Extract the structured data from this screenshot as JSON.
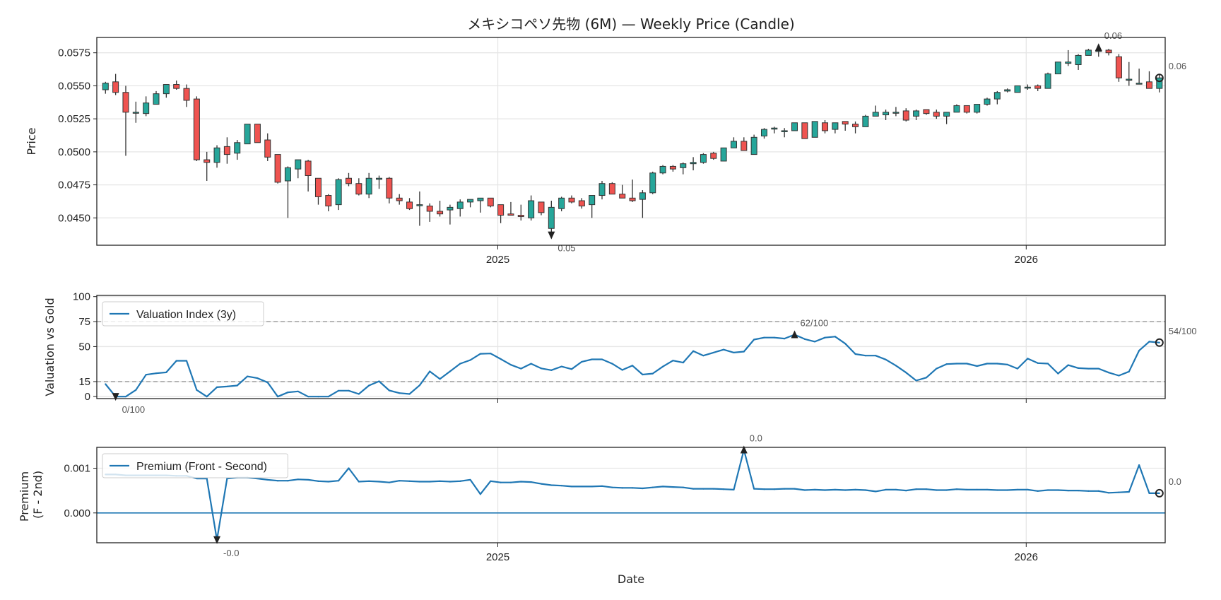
{
  "title": "メキシコペソ先物 (6M) — Weekly Price (Candle)",
  "x_axis": {
    "label": "Date",
    "xlim": [
      "2024-03-30",
      "2026-04-07"
    ],
    "ticks": [
      {
        "date": "2025-01-01",
        "label": "2025"
      },
      {
        "date": "2026-01-01",
        "label": "2026"
      }
    ]
  },
  "chart_data": {
    "type": "multi-panel",
    "x": [
      "2024-04-05",
      "2024-04-12",
      "2024-04-19",
      "2024-04-26",
      "2024-05-03",
      "2024-05-10",
      "2024-05-17",
      "2024-05-24",
      "2024-05-31",
      "2024-06-07",
      "2024-06-14",
      "2024-06-21",
      "2024-06-28",
      "2024-07-05",
      "2024-07-12",
      "2024-07-19",
      "2024-07-26",
      "2024-08-02",
      "2024-08-09",
      "2024-08-16",
      "2024-08-23",
      "2024-08-30",
      "2024-09-06",
      "2024-09-13",
      "2024-09-20",
      "2024-09-27",
      "2024-10-04",
      "2024-10-11",
      "2024-10-18",
      "2024-10-25",
      "2024-11-01",
      "2024-11-08",
      "2024-11-15",
      "2024-11-22",
      "2024-11-29",
      "2024-12-06",
      "2024-12-13",
      "2024-12-20",
      "2024-12-27",
      "2025-01-03",
      "2025-01-10",
      "2025-01-17",
      "2025-01-24",
      "2025-01-31",
      "2025-02-07",
      "2025-02-14",
      "2025-02-21",
      "2025-02-28",
      "2025-03-07",
      "2025-03-14",
      "2025-03-21",
      "2025-03-28",
      "2025-04-04",
      "2025-04-11",
      "2025-04-18",
      "2025-04-25",
      "2025-05-02",
      "2025-05-09",
      "2025-05-16",
      "2025-05-23",
      "2025-05-30",
      "2025-06-06",
      "2025-06-13",
      "2025-06-20",
      "2025-06-27",
      "2025-07-04",
      "2025-07-11",
      "2025-07-18",
      "2025-07-25",
      "2025-08-01",
      "2025-08-08",
      "2025-08-15",
      "2025-08-22",
      "2025-08-29",
      "2025-09-05",
      "2025-09-12",
      "2025-09-19",
      "2025-09-26",
      "2025-10-03",
      "2025-10-10",
      "2025-10-17",
      "2025-10-24",
      "2025-10-31",
      "2025-11-07",
      "2025-11-14",
      "2025-11-21",
      "2025-11-28",
      "2025-12-05",
      "2025-12-12",
      "2025-12-19",
      "2025-12-26",
      "2026-01-02",
      "2026-01-09",
      "2026-01-16",
      "2026-01-23",
      "2026-01-30",
      "2026-02-06",
      "2026-02-13",
      "2026-02-20",
      "2026-02-27",
      "2026-03-06",
      "2026-03-13",
      "2026-03-20",
      "2026-03-27",
      "2026-04-03"
    ],
    "panels": [
      {
        "type": "candlestick",
        "ylabel": "Price",
        "ylim": [
          0.04293,
          0.05866
        ],
        "grid": true,
        "yticks": [
          {
            "value": 0.045,
            "label": "0.0450"
          },
          {
            "value": 0.0475,
            "label": "0.0475"
          },
          {
            "value": 0.05,
            "label": "0.0500"
          },
          {
            "value": 0.0525,
            "label": "0.0525"
          },
          {
            "value": 0.055,
            "label": "0.0550"
          },
          {
            "value": 0.0575,
            "label": "0.0575"
          }
        ],
        "colors": {
          "up": "#26a69a",
          "down": "#ef5350",
          "edge": "#333333"
        },
        "ohlc_fields": [
          "open",
          "high",
          "low",
          "close"
        ],
        "candles": [
          [
            0.0547,
            0.0553,
            0.0544,
            0.0552
          ],
          [
            0.0553,
            0.0559,
            0.0543,
            0.0545
          ],
          [
            0.0545,
            0.055,
            0.0497,
            0.053
          ],
          [
            0.053,
            0.0538,
            0.0522,
            0.053
          ],
          [
            0.0529,
            0.0542,
            0.0527,
            0.0537
          ],
          [
            0.0536,
            0.0546,
            0.0536,
            0.0544
          ],
          [
            0.0544,
            0.0551,
            0.0541,
            0.0551
          ],
          [
            0.0551,
            0.0554,
            0.0547,
            0.0548
          ],
          [
            0.0548,
            0.0551,
            0.0534,
            0.0539
          ],
          [
            0.054,
            0.0542,
            0.0493,
            0.0494
          ],
          [
            0.0494,
            0.05,
            0.0478,
            0.0492
          ],
          [
            0.0492,
            0.0505,
            0.0488,
            0.0503
          ],
          [
            0.0504,
            0.0511,
            0.0491,
            0.0498
          ],
          [
            0.0499,
            0.0509,
            0.0494,
            0.0507
          ],
          [
            0.0506,
            0.0521,
            0.0506,
            0.0521
          ],
          [
            0.0521,
            0.0521,
            0.0507,
            0.0507
          ],
          [
            0.0509,
            0.0514,
            0.0493,
            0.0496
          ],
          [
            0.0498,
            0.0498,
            0.0476,
            0.0477
          ],
          [
            0.0478,
            0.0489,
            0.045,
            0.0488
          ],
          [
            0.0487,
            0.0494,
            0.048,
            0.0494
          ],
          [
            0.0493,
            0.0494,
            0.047,
            0.0482
          ],
          [
            0.048,
            0.048,
            0.046,
            0.0466
          ],
          [
            0.0467,
            0.0468,
            0.0455,
            0.0459
          ],
          [
            0.046,
            0.048,
            0.0456,
            0.0479
          ],
          [
            0.048,
            0.0484,
            0.0474,
            0.0476
          ],
          [
            0.0476,
            0.048,
            0.0467,
            0.0468
          ],
          [
            0.0468,
            0.0484,
            0.0465,
            0.048
          ],
          [
            0.048,
            0.0482,
            0.0472,
            0.048
          ],
          [
            0.048,
            0.0481,
            0.0461,
            0.0465
          ],
          [
            0.0465,
            0.0468,
            0.046,
            0.0463
          ],
          [
            0.0462,
            0.0465,
            0.0456,
            0.0457
          ],
          [
            0.046,
            0.047,
            0.0444,
            0.046
          ],
          [
            0.0459,
            0.0461,
            0.0447,
            0.0455
          ],
          [
            0.0455,
            0.0463,
            0.0451,
            0.0453
          ],
          [
            0.0456,
            0.046,
            0.0445,
            0.0458
          ],
          [
            0.0457,
            0.0464,
            0.0451,
            0.0462
          ],
          [
            0.0462,
            0.0464,
            0.0458,
            0.0464
          ],
          [
            0.0463,
            0.0465,
            0.0454,
            0.0465
          ],
          [
            0.0465,
            0.0465,
            0.0458,
            0.0459
          ],
          [
            0.046,
            0.046,
            0.0446,
            0.0452
          ],
          [
            0.0453,
            0.0462,
            0.0452,
            0.0452
          ],
          [
            0.0452,
            0.046,
            0.0448,
            0.0451
          ],
          [
            0.045,
            0.0467,
            0.0448,
            0.0463
          ],
          [
            0.0462,
            0.0462,
            0.0452,
            0.0454
          ],
          [
            0.0442,
            0.0463,
            0.0437,
            0.0458
          ],
          [
            0.0457,
            0.0466,
            0.0455,
            0.0465
          ],
          [
            0.0465,
            0.0467,
            0.0461,
            0.0462
          ],
          [
            0.0463,
            0.0465,
            0.0457,
            0.0459
          ],
          [
            0.046,
            0.0467,
            0.045,
            0.0467
          ],
          [
            0.0467,
            0.0478,
            0.0464,
            0.0476
          ],
          [
            0.0476,
            0.0477,
            0.0468,
            0.0468
          ],
          [
            0.0468,
            0.0475,
            0.0465,
            0.0465
          ],
          [
            0.0465,
            0.0479,
            0.0462,
            0.0463
          ],
          [
            0.0464,
            0.0471,
            0.045,
            0.0469
          ],
          [
            0.0469,
            0.0485,
            0.0468,
            0.0484
          ],
          [
            0.0484,
            0.049,
            0.0483,
            0.0489
          ],
          [
            0.0489,
            0.049,
            0.0485,
            0.0487
          ],
          [
            0.0488,
            0.0492,
            0.0483,
            0.0491
          ],
          [
            0.0491,
            0.0496,
            0.0486,
            0.0492
          ],
          [
            0.0492,
            0.0499,
            0.0491,
            0.0498
          ],
          [
            0.0499,
            0.05,
            0.0494,
            0.0495
          ],
          [
            0.0493,
            0.0503,
            0.0493,
            0.0503
          ],
          [
            0.0503,
            0.0511,
            0.0503,
            0.0508
          ],
          [
            0.0508,
            0.0511,
            0.0501,
            0.0501
          ],
          [
            0.0498,
            0.0513,
            0.0498,
            0.0511
          ],
          [
            0.0512,
            0.0518,
            0.051,
            0.0517
          ],
          [
            0.0518,
            0.0519,
            0.0514,
            0.0518
          ],
          [
            0.0516,
            0.0518,
            0.0511,
            0.0516
          ],
          [
            0.0516,
            0.0522,
            0.0516,
            0.0522
          ],
          [
            0.0522,
            0.0522,
            0.051,
            0.051
          ],
          [
            0.0511,
            0.0523,
            0.0511,
            0.0523
          ],
          [
            0.0522,
            0.0524,
            0.0514,
            0.0516
          ],
          [
            0.0517,
            0.0522,
            0.0514,
            0.0522
          ],
          [
            0.0523,
            0.0523,
            0.0516,
            0.0521
          ],
          [
            0.0521,
            0.0523,
            0.0514,
            0.0519
          ],
          [
            0.0519,
            0.0528,
            0.0519,
            0.0527
          ],
          [
            0.0527,
            0.0535,
            0.0527,
            0.053
          ],
          [
            0.0528,
            0.0532,
            0.0524,
            0.053
          ],
          [
            0.053,
            0.0534,
            0.0527,
            0.053
          ],
          [
            0.0531,
            0.0533,
            0.0523,
            0.0524
          ],
          [
            0.0527,
            0.0532,
            0.0524,
            0.0531
          ],
          [
            0.0532,
            0.0532,
            0.0528,
            0.0529
          ],
          [
            0.053,
            0.0532,
            0.0525,
            0.0527
          ],
          [
            0.0527,
            0.053,
            0.0521,
            0.053
          ],
          [
            0.053,
            0.0536,
            0.053,
            0.0535
          ],
          [
            0.0535,
            0.0535,
            0.0529,
            0.053
          ],
          [
            0.053,
            0.0536,
            0.0529,
            0.0536
          ],
          [
            0.0536,
            0.0541,
            0.0535,
            0.054
          ],
          [
            0.054,
            0.0546,
            0.0536,
            0.0545
          ],
          [
            0.0546,
            0.0548,
            0.0545,
            0.0547
          ],
          [
            0.0545,
            0.055,
            0.0545,
            0.055
          ],
          [
            0.0549,
            0.0551,
            0.0547,
            0.0549
          ],
          [
            0.055,
            0.0551,
            0.0546,
            0.0548
          ],
          [
            0.0548,
            0.056,
            0.0548,
            0.0559
          ],
          [
            0.0559,
            0.0568,
            0.0559,
            0.0568
          ],
          [
            0.0567,
            0.0577,
            0.0565,
            0.0568
          ],
          [
            0.0566,
            0.0574,
            0.0562,
            0.0573
          ],
          [
            0.0573,
            0.0578,
            0.0573,
            0.0577
          ],
          [
            0.0576,
            0.0579,
            0.0572,
            0.0577
          ],
          [
            0.0577,
            0.0578,
            0.0573,
            0.0575
          ],
          [
            0.0572,
            0.0574,
            0.0553,
            0.0556
          ],
          [
            0.0555,
            0.0568,
            0.055,
            0.0555
          ],
          [
            0.0552,
            0.0563,
            0.0551,
            0.0552
          ],
          [
            0.0553,
            0.0561,
            0.0548,
            0.0548
          ],
          [
            0.0548,
            0.0559,
            0.0545,
            0.0556
          ]
        ],
        "annotations": {
          "min_label": "0.05",
          "max_label": "0.06",
          "last_label": "0.06"
        }
      },
      {
        "type": "line",
        "ylabel": "Valuation vs Gold",
        "ylim": [
          -2,
          101.2
        ],
        "grid": true,
        "yticks": [
          {
            "value": 0,
            "label": "0"
          },
          {
            "value": 15,
            "label": "15"
          },
          {
            "value": 50,
            "label": "50"
          },
          {
            "value": 75,
            "label": "75"
          },
          {
            "value": 100,
            "label": "100"
          }
        ],
        "reference_lines": [
          {
            "value": 15,
            "style": "dashed",
            "color": "#999999"
          },
          {
            "value": 75,
            "style": "dashed",
            "color": "#999999"
          }
        ],
        "legend": {
          "label": "Valuation Index (3y)",
          "position": "upper-left"
        },
        "color": "#1f77b4",
        "values": [
          12.5,
          0,
          0,
          6.6,
          21.9,
          23.3,
          24.2,
          35.8,
          35.8,
          6.6,
          0,
          9.4,
          10.1,
          11.1,
          20.2,
          18.4,
          14.1,
          0,
          4.2,
          5.2,
          0,
          0,
          0,
          5.9,
          5.9,
          2.6,
          11.1,
          15.3,
          6.1,
          3.5,
          2.6,
          11.3,
          25.2,
          17.6,
          25.2,
          32.9,
          36.5,
          42.8,
          43.1,
          37.6,
          31.8,
          28,
          32.9,
          28.2,
          26.4,
          30.1,
          27.5,
          34.8,
          37.2,
          37.2,
          32.9,
          26.6,
          31,
          22,
          23,
          30,
          36,
          34,
          45.5,
          41,
          44,
          47,
          44,
          45,
          57,
          59,
          59,
          58,
          62,
          57.5,
          55,
          59,
          60,
          53,
          42.5,
          41,
          41,
          37,
          31,
          24,
          16,
          19,
          28,
          32.5,
          33,
          33,
          30.5,
          33,
          33,
          32,
          28,
          38,
          33.5,
          33,
          23,
          31.5,
          28.5,
          28,
          28,
          24,
          21,
          25,
          46,
          55,
          54
        ],
        "annotations": {
          "min_label": "0/100",
          "max_label": "62/100",
          "last_label": "54/100"
        }
      },
      {
        "type": "line",
        "ylabel": [
          "Premium",
          "(F - 2nd)"
        ],
        "ylim": [
          -0.000667,
          0.001466
        ],
        "grid": true,
        "yticks": [
          {
            "value": 0,
            "label": "0.000"
          },
          {
            "value": 0.001,
            "label": "0.001"
          }
        ],
        "reference_lines": [
          {
            "value": 0,
            "style": "solid",
            "color": "#1f77b4"
          }
        ],
        "legend": {
          "label": "Premium (Front - Second)",
          "position": "upper-left"
        },
        "color": "#1f77b4",
        "values": [
          0.00086,
          0.00086,
          0.00084,
          0.00084,
          0.00084,
          0.00084,
          0.00084,
          0.00083,
          0.00083,
          0.00077,
          0.00077,
          -0.0006,
          0.00077,
          0.00079,
          0.00079,
          0.00077,
          0.00074,
          0.00072,
          0.00072,
          0.00075,
          0.00074,
          0.00071,
          0.0007,
          0.00072,
          0.001,
          0.0007,
          0.00071,
          0.0007,
          0.00068,
          0.00072,
          0.00071,
          0.0007,
          0.0007,
          0.00071,
          0.0007,
          0.00071,
          0.00074,
          0.00042,
          0.00071,
          0.00068,
          0.00068,
          0.0007,
          0.00069,
          0.00065,
          0.00062,
          0.00061,
          0.00059,
          0.00059,
          0.00059,
          0.0006,
          0.00057,
          0.00056,
          0.00056,
          0.00055,
          0.00057,
          0.00059,
          0.00058,
          0.00057,
          0.00054,
          0.00054,
          0.00054,
          0.00053,
          0.00052,
          0.00141,
          0.00054,
          0.00053,
          0.00053,
          0.00054,
          0.00054,
          0.00051,
          0.00052,
          0.00051,
          0.00052,
          0.00051,
          0.00052,
          0.00051,
          0.00048,
          0.00052,
          0.00052,
          0.0005,
          0.00053,
          0.00053,
          0.00051,
          0.00051,
          0.00053,
          0.00052,
          0.00052,
          0.00052,
          0.00051,
          0.00051,
          0.00052,
          0.00052,
          0.00049,
          0.00051,
          0.00051,
          0.0005,
          0.0005,
          0.00049,
          0.00049,
          0.00045,
          0.00046,
          0.00047,
          0.00107,
          0.00044,
          0.00044
        ],
        "annotations": {
          "min_label": "-0.0",
          "max_label": "0.0",
          "last_label": "0.0"
        }
      }
    ]
  }
}
